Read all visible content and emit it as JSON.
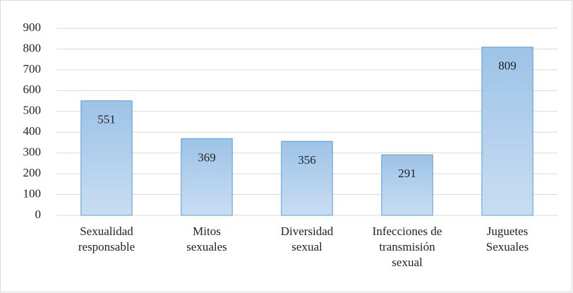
{
  "chart_data": {
    "type": "bar",
    "categories": [
      [
        "Sexualidad",
        "responsable"
      ],
      [
        "Mitos",
        "sexuales"
      ],
      [
        "Diversidad",
        "sexual"
      ],
      [
        "Infecciones de",
        "transmisión",
        "sexual"
      ],
      [
        "Juguetes",
        "Sexuales"
      ]
    ],
    "values": [
      551,
      369,
      356,
      291,
      809
    ],
    "color": "#9dc3e6",
    "ylim": [
      0,
      900
    ],
    "yticks": [
      0,
      100,
      200,
      300,
      400,
      500,
      600,
      700,
      800,
      900
    ],
    "grid": true
  }
}
